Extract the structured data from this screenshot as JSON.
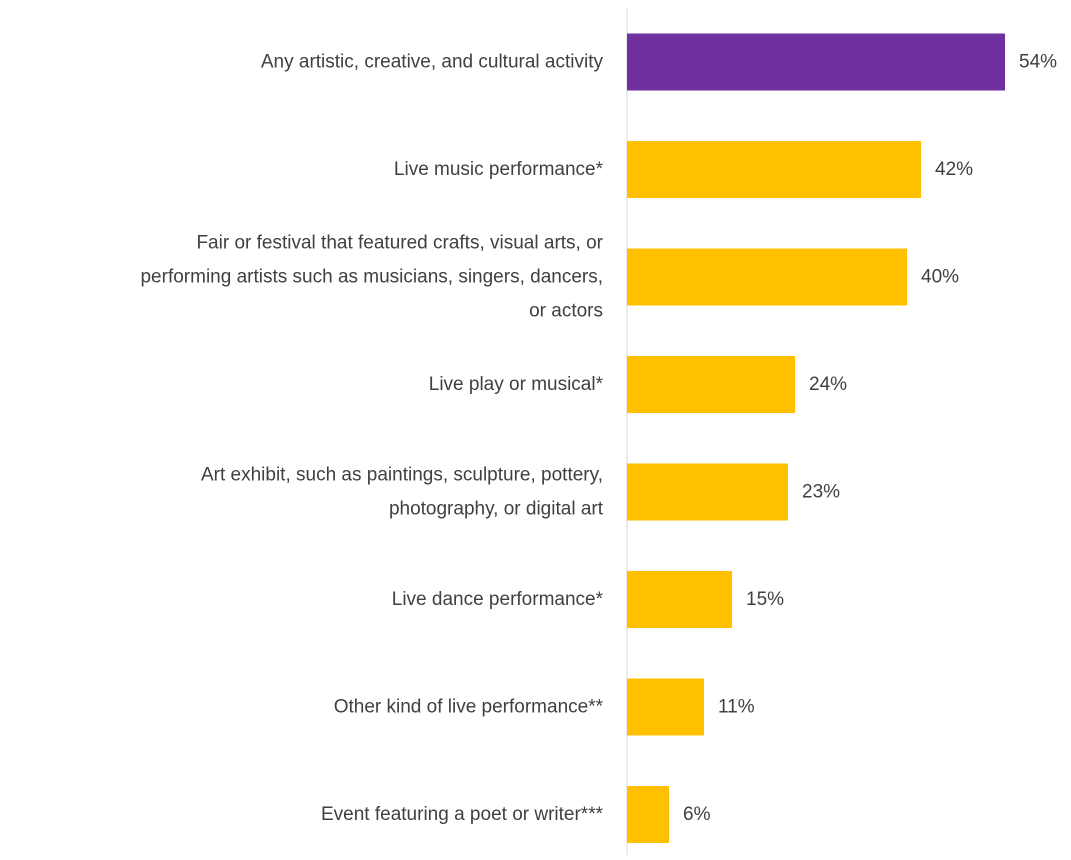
{
  "chart_data": {
    "type": "bar",
    "orientation": "horizontal",
    "title": "",
    "xlabel": "",
    "ylabel": "",
    "xlim": [
      0,
      60
    ],
    "grid": false,
    "legend": "none",
    "categories": [
      [
        "Any artistic, creative, and cultural activity"
      ],
      [
        "Live music performance*"
      ],
      [
        "Fair or festival that featured crafts, visual arts, or",
        "performing artists such as musicians, singers, dancers,",
        "or actors"
      ],
      [
        "Live play or musical*"
      ],
      [
        "Art exhibit, such as paintings, sculpture, pottery,",
        "photography, or digital art"
      ],
      [
        "Live dance performance*"
      ],
      [
        "Other kind of live performance**"
      ],
      [
        "Event featuring a poet or writer***"
      ]
    ],
    "values": [
      54,
      42,
      40,
      24,
      23,
      15,
      11,
      6
    ],
    "value_labels": [
      "54%",
      "42%",
      "40%",
      "24%",
      "23%",
      "15%",
      "11%",
      "6%"
    ],
    "colors": [
      "#7030a0",
      "#ffc000",
      "#ffc000",
      "#ffc000",
      "#ffc000",
      "#ffc000",
      "#ffc000",
      "#ffc000"
    ],
    "axis_color": "#d9d9d9"
  }
}
